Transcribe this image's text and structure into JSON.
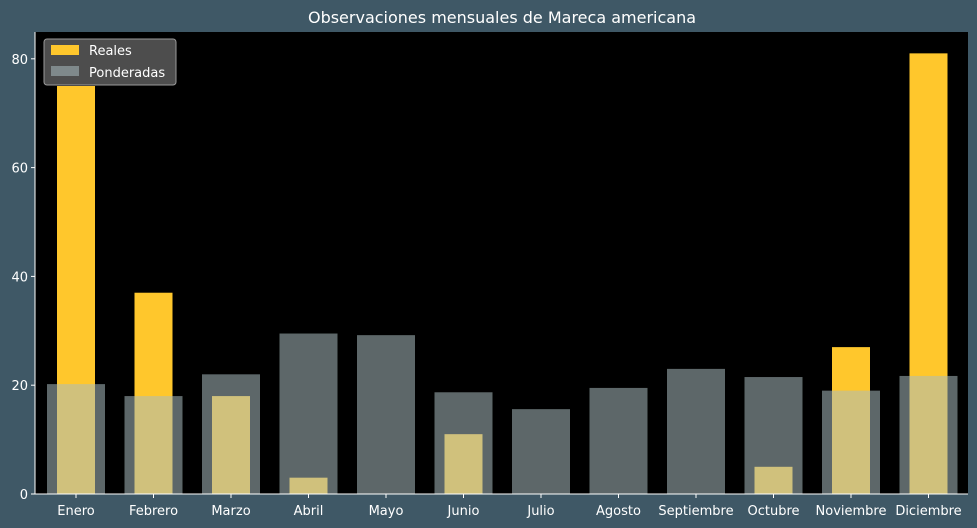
{
  "chart_data": {
    "type": "bar",
    "title": "Observaciones mensuales de Mareca americana",
    "xlabel": "",
    "ylabel": "",
    "categories": [
      "Enero",
      "Febrero",
      "Marzo",
      "Abril",
      "Mayo",
      "Junio",
      "Julio",
      "Agosto",
      "Septiembre",
      "Octubre",
      "Noviembre",
      "Diciembre"
    ],
    "series": [
      {
        "name": "Reales",
        "color": "#ffc72c",
        "values": [
          75,
          37,
          18,
          3,
          0,
          11,
          0,
          0,
          0,
          5,
          27,
          81
        ]
      },
      {
        "name": "Ponderadas",
        "color": "#a9bcbf",
        "opacity": 0.55,
        "values": [
          20.2,
          18.0,
          22.0,
          29.5,
          29.2,
          18.7,
          15.6,
          19.5,
          23.0,
          21.5,
          19.0,
          21.7
        ]
      }
    ],
    "ylim": [
      0,
      85
    ],
    "yticks": [
      0,
      20,
      40,
      60,
      80
    ],
    "grid": false,
    "legend_position": "top-left"
  }
}
